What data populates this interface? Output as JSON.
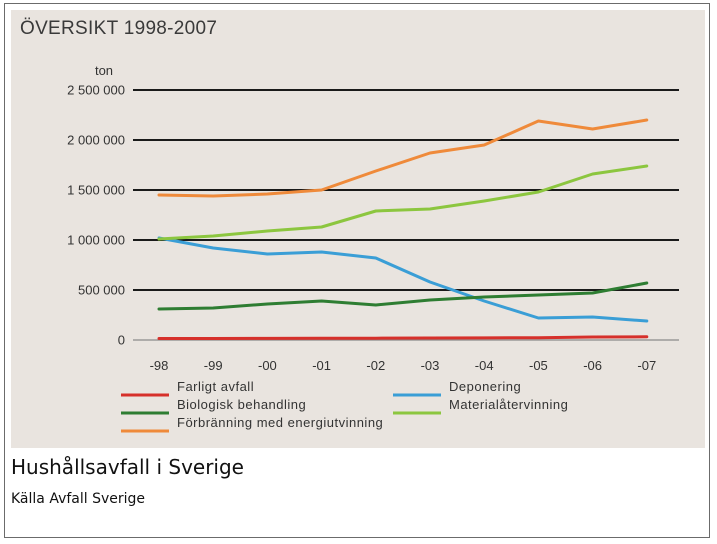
{
  "caption": "Hushållsavfall i Sverige",
  "source": "Källa Avfall Sverige",
  "chart_data": {
    "type": "line",
    "title": "ÖVERSIKT 1998-2007",
    "ylabel": "ton",
    "xlabel": "",
    "ylim": [
      0,
      2500000
    ],
    "yticks": [
      0,
      500000,
      1000000,
      1500000,
      2000000,
      2500000
    ],
    "ytick_labels": [
      "0",
      "500 000",
      "1 000 000",
      "1 500 000",
      "2 000 000",
      "2 500 000"
    ],
    "categories": [
      "-98",
      "-99",
      "-00",
      "-01",
      "-02",
      "-03",
      "-04",
      "-05",
      "-06",
      "-07"
    ],
    "grid": "horizontal",
    "legend": "bottom",
    "series": [
      {
        "name": "Farligt avfall",
        "color": "#d6302b",
        "values": [
          15000,
          15000,
          16000,
          17000,
          18000,
          20000,
          21000,
          23000,
          30000,
          32000
        ]
      },
      {
        "name": "Deponering",
        "color": "#3a9ed6",
        "values": [
          1020000,
          920000,
          860000,
          880000,
          820000,
          580000,
          390000,
          220000,
          230000,
          190000
        ]
      },
      {
        "name": "Biologisk behandling",
        "color": "#2e7d32",
        "values": [
          310000,
          320000,
          360000,
          390000,
          350000,
          400000,
          430000,
          450000,
          470000,
          570000
        ]
      },
      {
        "name": "Materialåtervinning",
        "color": "#8cc63f",
        "values": [
          1010000,
          1040000,
          1090000,
          1130000,
          1290000,
          1310000,
          1390000,
          1480000,
          1660000,
          1740000
        ]
      },
      {
        "name": "Förbränning med energiutvinning",
        "color": "#ef8a3a",
        "values": [
          1450000,
          1440000,
          1460000,
          1500000,
          1690000,
          1870000,
          1950000,
          2190000,
          2110000,
          2200000
        ]
      }
    ]
  }
}
